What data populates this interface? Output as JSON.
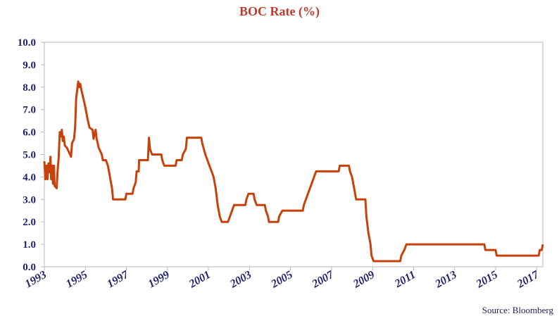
{
  "colors": {
    "title": "#c0392b",
    "line": "#c8410a",
    "axis_text": "#1f1f6e",
    "grid_border": "#b8b8b8",
    "source_text": "#1f1f5c"
  },
  "source": "Source: Bloomberg",
  "chart_data": {
    "type": "line",
    "title": "BOC Rate (%)",
    "xlabel": "",
    "ylabel": "",
    "xlim": [
      1993,
      2017.3
    ],
    "ylim": [
      0,
      10
    ],
    "grid": false,
    "legend": "none",
    "y_ticks": [
      {
        "value": 0,
        "label": "0.0"
      },
      {
        "value": 1,
        "label": "1.0"
      },
      {
        "value": 2,
        "label": "2.0"
      },
      {
        "value": 3,
        "label": "3.0"
      },
      {
        "value": 4,
        "label": "4.0"
      },
      {
        "value": 5,
        "label": "5.0"
      },
      {
        "value": 6,
        "label": "6.0"
      },
      {
        "value": 7,
        "label": "7.0"
      },
      {
        "value": 8,
        "label": "8.0"
      },
      {
        "value": 9,
        "label": "9.0"
      },
      {
        "value": 10,
        "label": "10.0"
      }
    ],
    "x_ticks": [
      {
        "value": 1993,
        "label": "1993"
      },
      {
        "value": 1995,
        "label": "1995"
      },
      {
        "value": 1997,
        "label": "1997"
      },
      {
        "value": 1999,
        "label": "1999"
      },
      {
        "value": 2001,
        "label": "2001"
      },
      {
        "value": 2003,
        "label": "2003"
      },
      {
        "value": 2005,
        "label": "2005"
      },
      {
        "value": 2007,
        "label": "2007"
      },
      {
        "value": 2009,
        "label": "2009"
      },
      {
        "value": 2011,
        "label": "2011"
      },
      {
        "value": 2013,
        "label": "2013"
      },
      {
        "value": 2015,
        "label": "2015"
      },
      {
        "value": 2017,
        "label": "2017"
      }
    ],
    "series": [
      {
        "points": [
          [
            1993.0,
            4.7
          ],
          [
            1993.05,
            3.9
          ],
          [
            1993.1,
            4.5
          ],
          [
            1993.15,
            3.9
          ],
          [
            1993.2,
            4.6
          ],
          [
            1993.25,
            4.2
          ],
          [
            1993.3,
            4.9
          ],
          [
            1993.33,
            3.9
          ],
          [
            1993.38,
            4.5
          ],
          [
            1993.42,
            3.7
          ],
          [
            1993.47,
            4.5
          ],
          [
            1993.5,
            3.6
          ],
          [
            1993.6,
            3.5
          ],
          [
            1993.65,
            4.3
          ],
          [
            1993.7,
            4.9
          ],
          [
            1993.75,
            6.0
          ],
          [
            1993.8,
            5.8
          ],
          [
            1993.85,
            6.1
          ],
          [
            1993.9,
            5.6
          ],
          [
            1993.95,
            5.8
          ],
          [
            1994.0,
            5.4
          ],
          [
            1994.1,
            5.3
          ],
          [
            1994.2,
            5.1
          ],
          [
            1994.3,
            4.9
          ],
          [
            1994.35,
            5.5
          ],
          [
            1994.45,
            5.7
          ],
          [
            1994.5,
            6.2
          ],
          [
            1994.55,
            7.5
          ],
          [
            1994.65,
            8.25
          ],
          [
            1994.7,
            8.0
          ],
          [
            1994.75,
            8.15
          ],
          [
            1994.8,
            7.9
          ],
          [
            1994.9,
            7.5
          ],
          [
            1995.0,
            7.1
          ],
          [
            1995.1,
            6.6
          ],
          [
            1995.2,
            6.2
          ],
          [
            1995.35,
            6.1
          ],
          [
            1995.4,
            5.7
          ],
          [
            1995.5,
            6.1
          ],
          [
            1995.55,
            5.7
          ],
          [
            1995.65,
            5.3
          ],
          [
            1995.8,
            5.0
          ],
          [
            1995.85,
            4.75
          ],
          [
            1996.0,
            4.75
          ],
          [
            1996.1,
            4.5
          ],
          [
            1996.2,
            4.0
          ],
          [
            1996.3,
            3.5
          ],
          [
            1996.35,
            3.0
          ],
          [
            1996.95,
            3.0
          ],
          [
            1997.0,
            3.25
          ],
          [
            1997.3,
            3.25
          ],
          [
            1997.35,
            3.5
          ],
          [
            1997.45,
            3.75
          ],
          [
            1997.5,
            4.25
          ],
          [
            1997.6,
            4.25
          ],
          [
            1997.62,
            4.75
          ],
          [
            1998.05,
            4.75
          ],
          [
            1998.1,
            5.75
          ],
          [
            1998.15,
            5.25
          ],
          [
            1998.25,
            5.0
          ],
          [
            1998.7,
            5.0
          ],
          [
            1998.75,
            4.75
          ],
          [
            1998.85,
            4.5
          ],
          [
            1999.4,
            4.5
          ],
          [
            1999.45,
            4.75
          ],
          [
            1999.7,
            4.75
          ],
          [
            1999.75,
            5.0
          ],
          [
            1999.9,
            5.25
          ],
          [
            1999.95,
            5.75
          ],
          [
            2000.65,
            5.75
          ],
          [
            2000.7,
            5.5
          ],
          [
            2000.85,
            5.0
          ],
          [
            2000.95,
            4.75
          ],
          [
            2001.05,
            4.5
          ],
          [
            2001.15,
            4.25
          ],
          [
            2001.25,
            4.0
          ],
          [
            2001.35,
            3.5
          ],
          [
            2001.45,
            2.75
          ],
          [
            2001.55,
            2.25
          ],
          [
            2001.65,
            2.0
          ],
          [
            2001.95,
            2.0
          ],
          [
            2002.05,
            2.25
          ],
          [
            2002.15,
            2.5
          ],
          [
            2002.25,
            2.75
          ],
          [
            2002.8,
            2.75
          ],
          [
            2002.85,
            3.0
          ],
          [
            2002.95,
            3.25
          ],
          [
            2003.2,
            3.25
          ],
          [
            2003.25,
            3.0
          ],
          [
            2003.35,
            2.75
          ],
          [
            2003.75,
            2.75
          ],
          [
            2003.8,
            2.5
          ],
          [
            2003.9,
            2.25
          ],
          [
            2003.95,
            2.0
          ],
          [
            2004.4,
            2.0
          ],
          [
            2004.45,
            2.25
          ],
          [
            2004.6,
            2.5
          ],
          [
            2005.6,
            2.5
          ],
          [
            2005.65,
            2.75
          ],
          [
            2005.75,
            3.0
          ],
          [
            2005.85,
            3.25
          ],
          [
            2005.95,
            3.5
          ],
          [
            2006.05,
            3.75
          ],
          [
            2006.15,
            4.0
          ],
          [
            2006.25,
            4.25
          ],
          [
            2007.35,
            4.25
          ],
          [
            2007.4,
            4.5
          ],
          [
            2007.85,
            4.5
          ],
          [
            2007.9,
            4.25
          ],
          [
            2008.0,
            4.0
          ],
          [
            2008.1,
            3.5
          ],
          [
            2008.2,
            3.0
          ],
          [
            2008.65,
            3.0
          ],
          [
            2008.7,
            2.25
          ],
          [
            2008.8,
            1.5
          ],
          [
            2008.9,
            1.0
          ],
          [
            2008.95,
            0.5
          ],
          [
            2009.05,
            0.25
          ],
          [
            2010.35,
            0.25
          ],
          [
            2010.4,
            0.5
          ],
          [
            2010.55,
            0.75
          ],
          [
            2010.65,
            1.0
          ],
          [
            2014.45,
            1.0
          ],
          [
            2014.5,
            0.75
          ],
          [
            2015.0,
            0.75
          ],
          [
            2015.05,
            0.5
          ],
          [
            2017.1,
            0.5
          ],
          [
            2017.15,
            0.75
          ],
          [
            2017.25,
            0.75
          ],
          [
            2017.3,
            1.0
          ]
        ]
      }
    ]
  }
}
